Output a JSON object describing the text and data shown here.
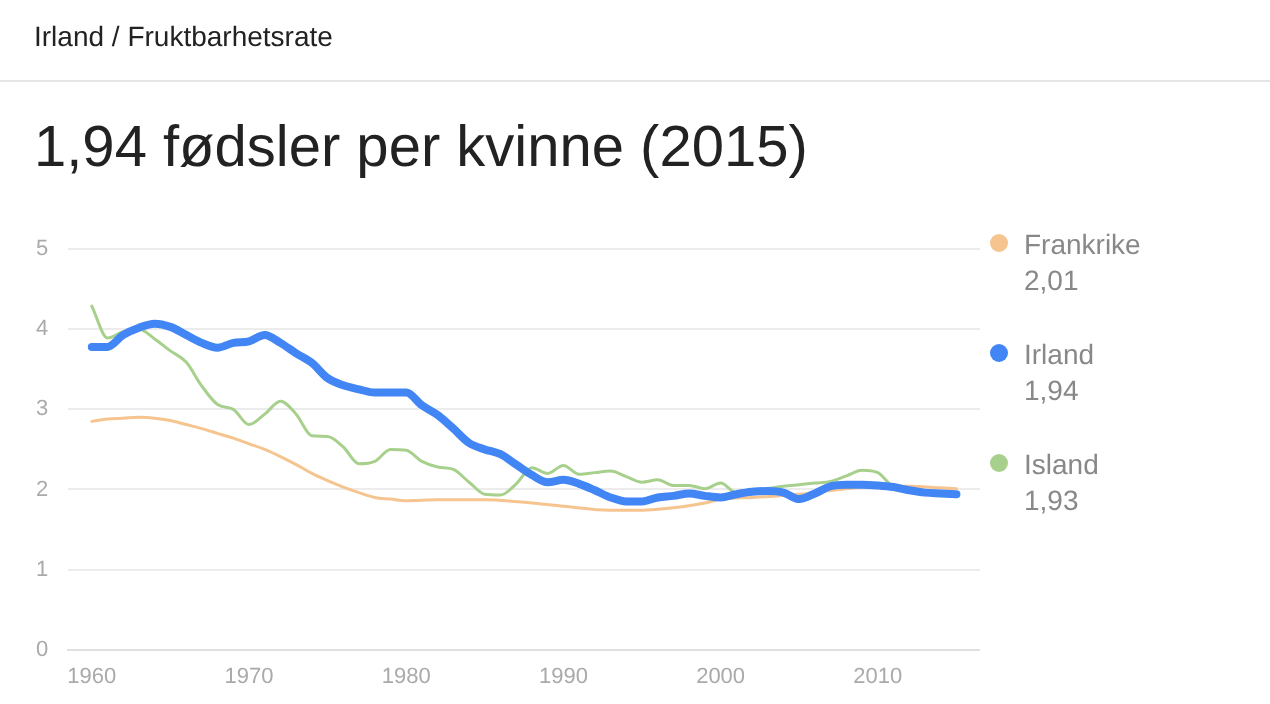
{
  "chart_data": {
    "type": "line",
    "subtitle": "Irland / Fruktbarhetsrate",
    "title": "1,94 fødsler per kvinne (2015)",
    "xlim": [
      1958.5,
      2016.5
    ],
    "xticks": [
      1960,
      1970,
      1980,
      1990,
      2000,
      2010
    ],
    "ylim": [
      0,
      5
    ],
    "yticks": [
      0,
      1,
      2,
      3,
      4,
      5
    ],
    "grid": "y",
    "legend": "right",
    "marker": "none",
    "annotations": [
      "2,01",
      "1,94",
      "1,93"
    ],
    "series": [
      {
        "name": "Frankrike",
        "color": "#f6c48f",
        "x": [
          1960,
          1961,
          1962,
          1963,
          1964,
          1965,
          1966,
          1967,
          1968,
          1969,
          1970,
          1971,
          1972,
          1973,
          1974,
          1975,
          1976,
          1977,
          1978,
          1979,
          1980,
          1982,
          1985,
          1988,
          1990,
          1993,
          1995,
          1997,
          1999,
          2000,
          2002,
          2005,
          2008,
          2010,
          2012,
          2014,
          2015
        ],
        "values": [
          2.85,
          2.88,
          2.89,
          2.9,
          2.89,
          2.86,
          2.81,
          2.76,
          2.7,
          2.64,
          2.57,
          2.5,
          2.41,
          2.31,
          2.2,
          2.11,
          2.03,
          1.96,
          1.9,
          1.88,
          1.86,
          1.87,
          1.87,
          1.83,
          1.79,
          1.74,
          1.74,
          1.77,
          1.83,
          1.88,
          1.9,
          1.94,
          2.01,
          2.04,
          2.04,
          2.02,
          2.01
        ]
      },
      {
        "name": "Irland",
        "color": "#4285f4",
        "x": [
          1960,
          1961,
          1962,
          1963,
          1964,
          1965,
          1966,
          1967,
          1968,
          1969,
          1970,
          1971,
          1972,
          1973,
          1974,
          1975,
          1976,
          1977,
          1978,
          1979,
          1980,
          1981,
          1982,
          1983,
          1984,
          1985,
          1986,
          1987,
          1988,
          1989,
          1990,
          1991,
          1992,
          1993,
          1994,
          1995,
          1996,
          1997,
          1998,
          1999,
          2000,
          2001,
          2002,
          2003,
          2004,
          2005,
          2006,
          2007,
          2008,
          2009,
          2010,
          2011,
          2012,
          2013,
          2014,
          2015
        ],
        "values": [
          3.78,
          3.78,
          3.93,
          4.02,
          4.07,
          4.03,
          3.93,
          3.83,
          3.77,
          3.83,
          3.85,
          3.93,
          3.83,
          3.7,
          3.58,
          3.39,
          3.3,
          3.25,
          3.21,
          3.21,
          3.21,
          3.05,
          2.93,
          2.76,
          2.58,
          2.5,
          2.44,
          2.31,
          2.18,
          2.09,
          2.12,
          2.07,
          1.99,
          1.9,
          1.85,
          1.85,
          1.9,
          1.92,
          1.95,
          1.92,
          1.9,
          1.94,
          1.97,
          1.98,
          1.96,
          1.88,
          1.95,
          2.04,
          2.06,
          2.06,
          2.05,
          2.03,
          1.99,
          1.96,
          1.95,
          1.94
        ]
      },
      {
        "name": "Island",
        "color": "#a8d08d",
        "x": [
          1960,
          1961,
          1962,
          1963,
          1964,
          1965,
          1966,
          1967,
          1968,
          1969,
          1970,
          1971,
          1972,
          1973,
          1974,
          1975,
          1976,
          1977,
          1978,
          1979,
          1980,
          1981,
          1982,
          1983,
          1984,
          1985,
          1986,
          1987,
          1988,
          1989,
          1990,
          1991,
          1992,
          1993,
          1994,
          1995,
          1996,
          1997,
          1998,
          1999,
          2000,
          2001,
          2002,
          2003,
          2004,
          2005,
          2006,
          2007,
          2008,
          2009,
          2010,
          2011,
          2012,
          2013,
          2014,
          2015
        ],
        "values": [
          4.29,
          3.89,
          3.97,
          4.0,
          3.88,
          3.73,
          3.59,
          3.29,
          3.06,
          3.0,
          2.81,
          2.94,
          3.1,
          2.94,
          2.67,
          2.66,
          2.53,
          2.32,
          2.35,
          2.5,
          2.49,
          2.35,
          2.28,
          2.25,
          2.09,
          1.94,
          1.93,
          2.07,
          2.27,
          2.2,
          2.3,
          2.19,
          2.21,
          2.23,
          2.16,
          2.09,
          2.12,
          2.05,
          2.05,
          2.01,
          2.08,
          1.96,
          1.98,
          2.01,
          2.04,
          2.06,
          2.08,
          2.1,
          2.17,
          2.24,
          2.21,
          2.03,
          2.0,
          1.97,
          1.95,
          1.93
        ]
      }
    ]
  }
}
